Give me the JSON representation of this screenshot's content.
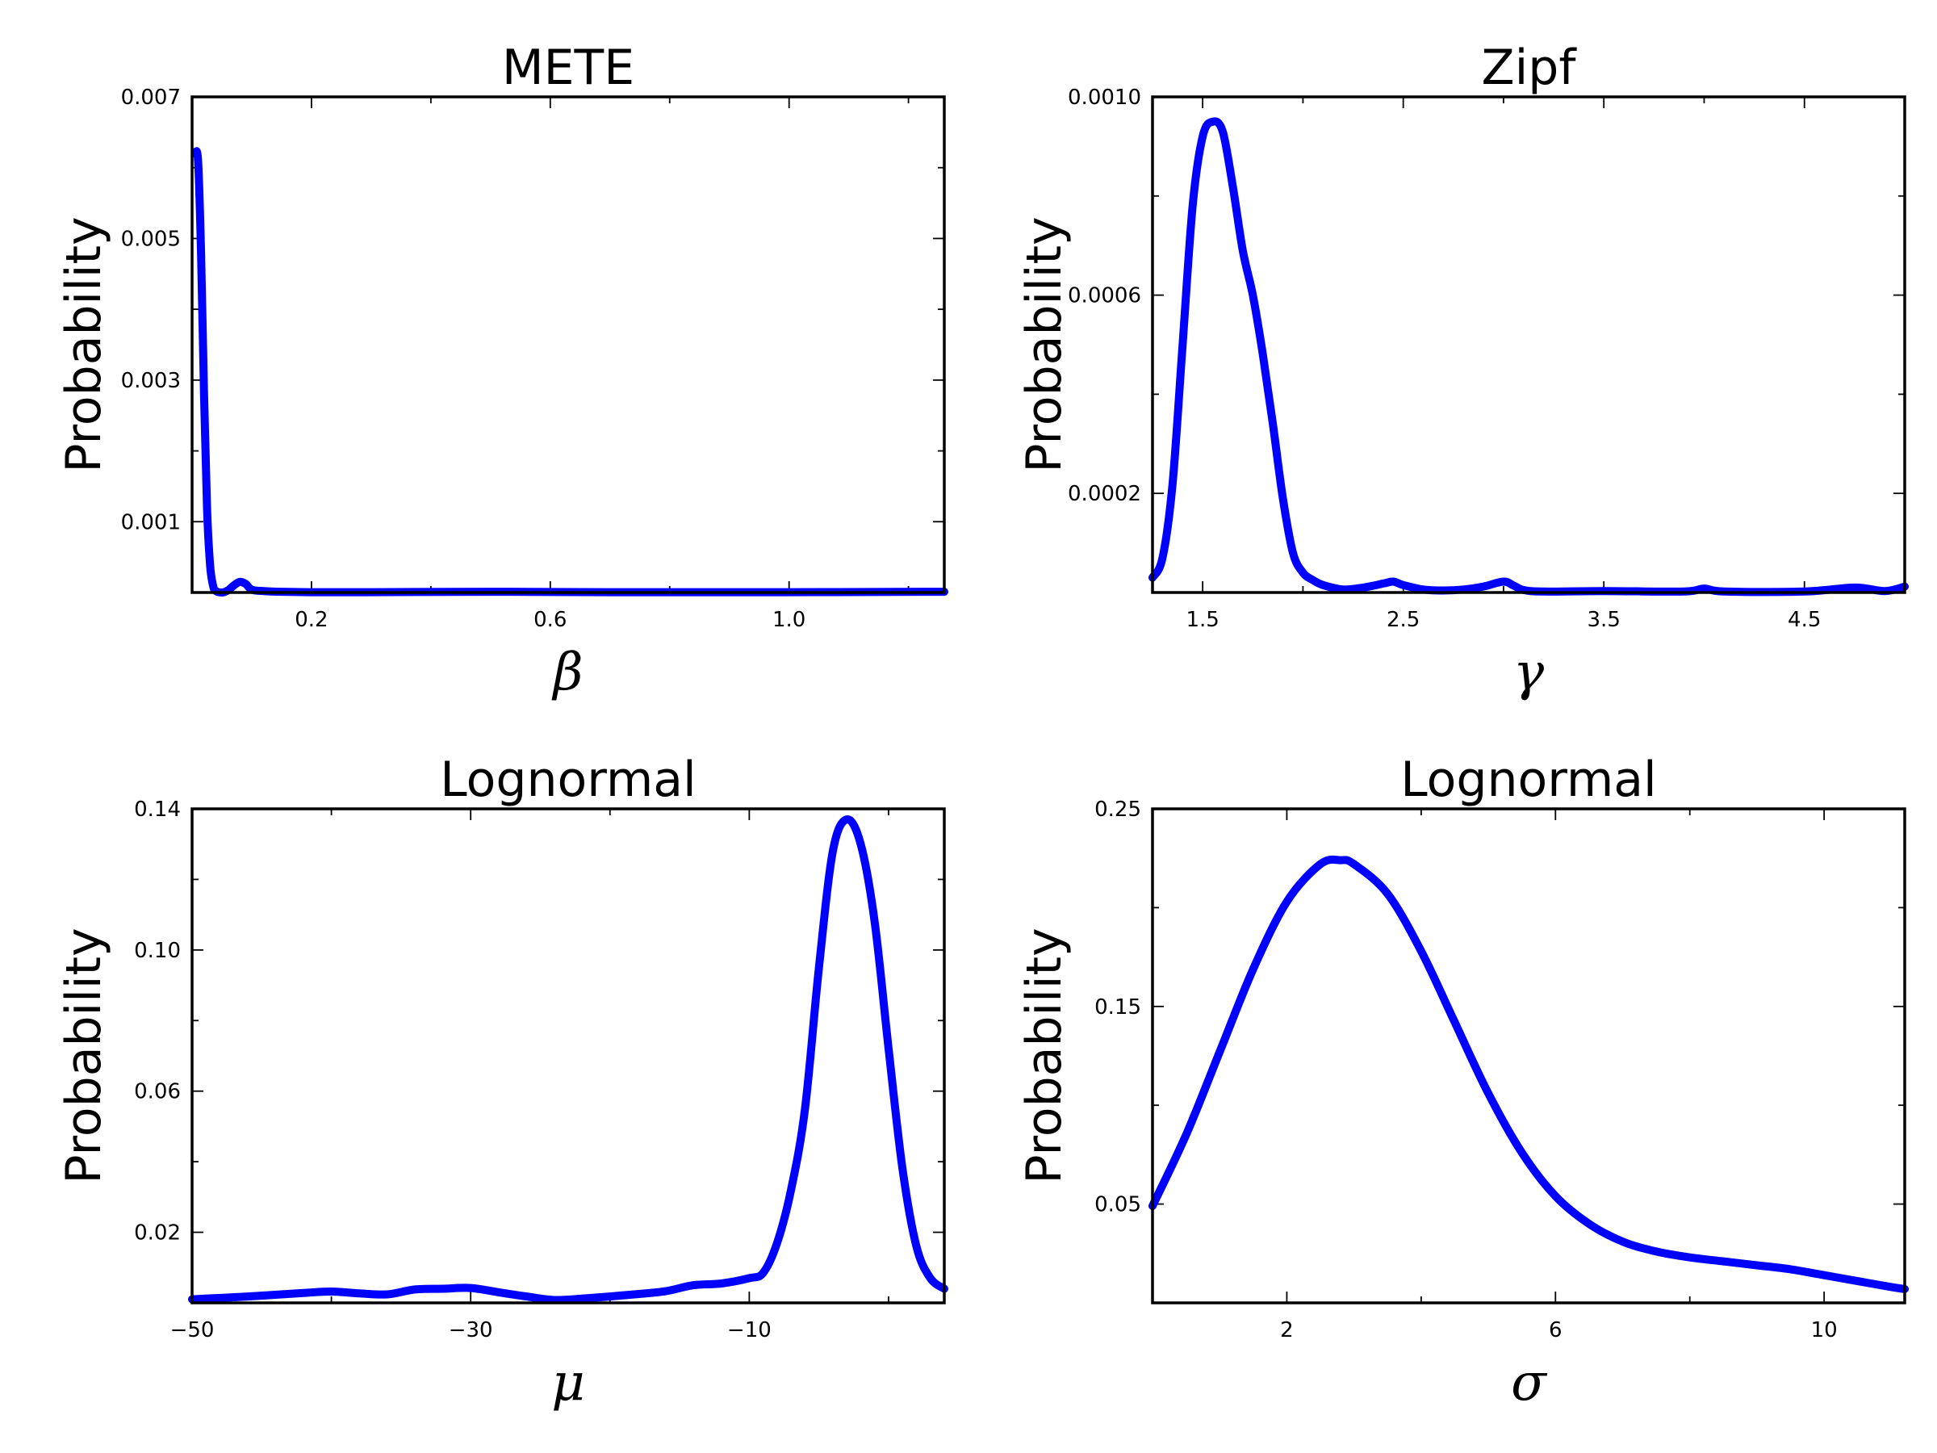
{
  "chart_data": [
    {
      "type": "line",
      "title": "METE",
      "xlabel": "β",
      "ylabel": "Probability",
      "xlim": [
        0.0,
        1.26
      ],
      "ylim": [
        0.0,
        0.007
      ],
      "xticks": [
        0.2,
        0.6,
        1.0
      ],
      "xtick_labels": [
        "0.2",
        "0.6",
        "1.0"
      ],
      "xminor": [
        0.4,
        0.8,
        1.2
      ],
      "yticks": [
        0.001,
        0.003,
        0.005,
        0.007
      ],
      "ytick_labels": [
        "0.001",
        "0.003",
        "0.005",
        "0.007"
      ],
      "yminor": [
        0.002,
        0.004,
        0.006
      ],
      "color": "#0000ff",
      "series": [
        {
          "x": [
            0.005,
            0.01,
            0.015,
            0.02,
            0.025,
            0.03,
            0.035,
            0.04,
            0.05,
            0.06,
            0.07,
            0.08,
            0.09,
            0.1,
            0.12,
            0.15,
            0.2,
            0.3,
            0.5,
            0.7,
            1.0,
            1.26
          ],
          "y": [
            0.0062,
            0.0061,
            0.0048,
            0.0028,
            0.0012,
            0.0004,
            0.0001,
            2e-05,
            0.0,
            3e-05,
            0.0001,
            0.00015,
            0.00012,
            4e-05,
            2e-05,
            1e-05,
            5e-06,
            5e-06,
            1e-05,
            5e-06,
            5e-06,
            1e-05
          ]
        }
      ]
    },
    {
      "type": "line",
      "title": "Zipf",
      "xlabel": "γ",
      "ylabel": "Probability",
      "xlim": [
        1.25,
        5.0
      ],
      "ylim": [
        0.0,
        0.001
      ],
      "xticks": [
        1.5,
        2.5,
        3.5,
        4.5
      ],
      "xtick_labels": [
        "1.5",
        "2.5",
        "3.5",
        "4.5"
      ],
      "xminor": [
        2.0,
        3.0,
        4.0,
        5.0
      ],
      "yticks": [
        0.0002,
        0.0006,
        0.001
      ],
      "ytick_labels": [
        "0.0002",
        "0.0006",
        "0.0010"
      ],
      "yminor": [
        0.0004,
        0.0008
      ],
      "color": "#0000ff",
      "series": [
        {
          "x": [
            1.25,
            1.3,
            1.35,
            1.4,
            1.45,
            1.5,
            1.55,
            1.6,
            1.65,
            1.7,
            1.75,
            1.8,
            1.85,
            1.9,
            1.95,
            2.0,
            2.05,
            2.1,
            2.2,
            2.3,
            2.4,
            2.45,
            2.5,
            2.6,
            2.7,
            2.8,
            2.9,
            3.0,
            3.05,
            3.1,
            3.2,
            3.5,
            3.9,
            4.0,
            4.1,
            4.5,
            4.75,
            4.9,
            5.0
          ],
          "y": [
            3e-05,
            7e-05,
            0.00022,
            0.0005,
            0.00078,
            0.00092,
            0.00095,
            0.00093,
            0.00082,
            0.00069,
            0.0006,
            0.00048,
            0.00034,
            0.00019,
            8e-05,
            4e-05,
            2.5e-05,
            1.5e-05,
            6e-06,
            1e-05,
            1.8e-05,
            2.2e-05,
            1.5e-05,
            6e-06,
            4e-06,
            6e-06,
            1.2e-05,
            2.2e-05,
            1.4e-05,
            5e-06,
            2e-06,
            3e-06,
            2e-06,
            8e-06,
            2e-06,
            2e-06,
            1e-05,
            3e-06,
            1.2e-05
          ]
        }
      ]
    },
    {
      "type": "line",
      "title": "Lognormal",
      "xlabel": "μ",
      "ylabel": "Probability",
      "xlim": [
        -50,
        4
      ],
      "ylim": [
        0.0,
        0.14
      ],
      "xticks": [
        -50,
        -30,
        -10
      ],
      "xtick_labels": [
        "−50",
        "−30",
        "−10"
      ],
      "xminor": [
        -40,
        -20,
        0
      ],
      "yticks": [
        0.02,
        0.06,
        0.1,
        0.14
      ],
      "ytick_labels": [
        "0.02",
        "0.06",
        "0.10",
        "0.14"
      ],
      "yminor": [
        0.04,
        0.08,
        0.12
      ],
      "color": "#0000ff",
      "series": [
        {
          "x": [
            -50,
            -46,
            -42,
            -40,
            -38,
            -36,
            -34,
            -32,
            -30,
            -28,
            -26,
            -24,
            -22,
            -20,
            -18,
            -16,
            -14,
            -12,
            -10,
            -9,
            -8,
            -7,
            -6,
            -5,
            -4,
            -3,
            -2,
            -1,
            0,
            1,
            2,
            3,
            4
          ],
          "y": [
            0.001,
            0.0018,
            0.0028,
            0.0032,
            0.0027,
            0.0024,
            0.0038,
            0.004,
            0.0042,
            0.003,
            0.0018,
            0.0008,
            0.0012,
            0.0018,
            0.0025,
            0.0033,
            0.005,
            0.0055,
            0.007,
            0.0085,
            0.017,
            0.032,
            0.055,
            0.095,
            0.128,
            0.137,
            0.13,
            0.108,
            0.072,
            0.038,
            0.016,
            0.007,
            0.004
          ]
        }
      ]
    },
    {
      "type": "line",
      "title": "Lognormal",
      "xlabel": "σ",
      "ylabel": "Probability",
      "xlim": [
        0.0,
        11.2
      ],
      "ylim": [
        0.0,
        0.25
      ],
      "xticks": [
        2,
        6,
        10
      ],
      "xtick_labels": [
        "2",
        "6",
        "10"
      ],
      "xminor": [
        4,
        8
      ],
      "yticks": [
        0.05,
        0.15,
        0.25
      ],
      "ytick_labels": [
        "0.05",
        "0.15",
        "0.25"
      ],
      "yminor": [
        0.1,
        0.2
      ],
      "color": "#0000ff",
      "series": [
        {
          "x": [
            0.0,
            0.5,
            1.0,
            1.5,
            2.0,
            2.5,
            2.8,
            3.0,
            3.5,
            4.0,
            4.5,
            5.0,
            5.5,
            6.0,
            6.5,
            7.0,
            7.5,
            8.0,
            8.5,
            9.0,
            9.5,
            10.0,
            10.5,
            11.0,
            11.2
          ],
          "y": [
            0.049,
            0.085,
            0.127,
            0.169,
            0.203,
            0.222,
            0.224,
            0.222,
            0.207,
            0.178,
            0.142,
            0.106,
            0.076,
            0.054,
            0.04,
            0.031,
            0.026,
            0.023,
            0.021,
            0.019,
            0.017,
            0.014,
            0.011,
            0.008,
            0.007
          ]
        }
      ]
    }
  ]
}
